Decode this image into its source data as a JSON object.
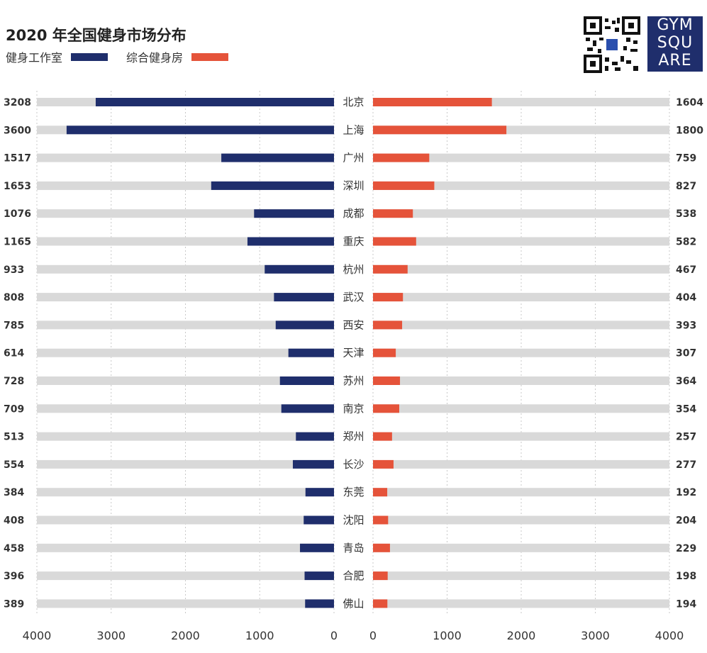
{
  "chart_data": {
    "type": "bar",
    "title": "2020 年全国健身市场分布",
    "categories": [
      "北京",
      "上海",
      "广州",
      "深圳",
      "成都",
      "重庆",
      "杭州",
      "武汉",
      "西安",
      "天津",
      "苏州",
      "南京",
      "郑州",
      "长沙",
      "东莞",
      "沈阳",
      "青岛",
      "合肥",
      "佛山"
    ],
    "series": [
      {
        "name": "健身工作室",
        "color": "#1f2e6c",
        "values": [
          3208,
          3600,
          1517,
          1653,
          1076,
          1165,
          933,
          808,
          785,
          614,
          728,
          709,
          513,
          554,
          384,
          408,
          458,
          396,
          389
        ]
      },
      {
        "name": "综合健身房",
        "color": "#e5533a",
        "values": [
          1604,
          1800,
          759,
          827,
          538,
          582,
          467,
          404,
          393,
          307,
          364,
          354,
          257,
          277,
          192,
          204,
          229,
          198,
          194
        ]
      }
    ],
    "xlim": [
      0,
      4000
    ],
    "left_ticks": [
      "4000",
      "3000",
      "2000",
      "1000",
      "0"
    ],
    "right_ticks": [
      "0",
      "1000",
      "2000",
      "3000",
      "4000"
    ],
    "track_color": "#d9d9d9",
    "grid": true,
    "legend_position": "top-left"
  },
  "logo": {
    "lines": [
      "GYM",
      "SQU",
      "ARE"
    ],
    "color": "#1f2e6c"
  }
}
